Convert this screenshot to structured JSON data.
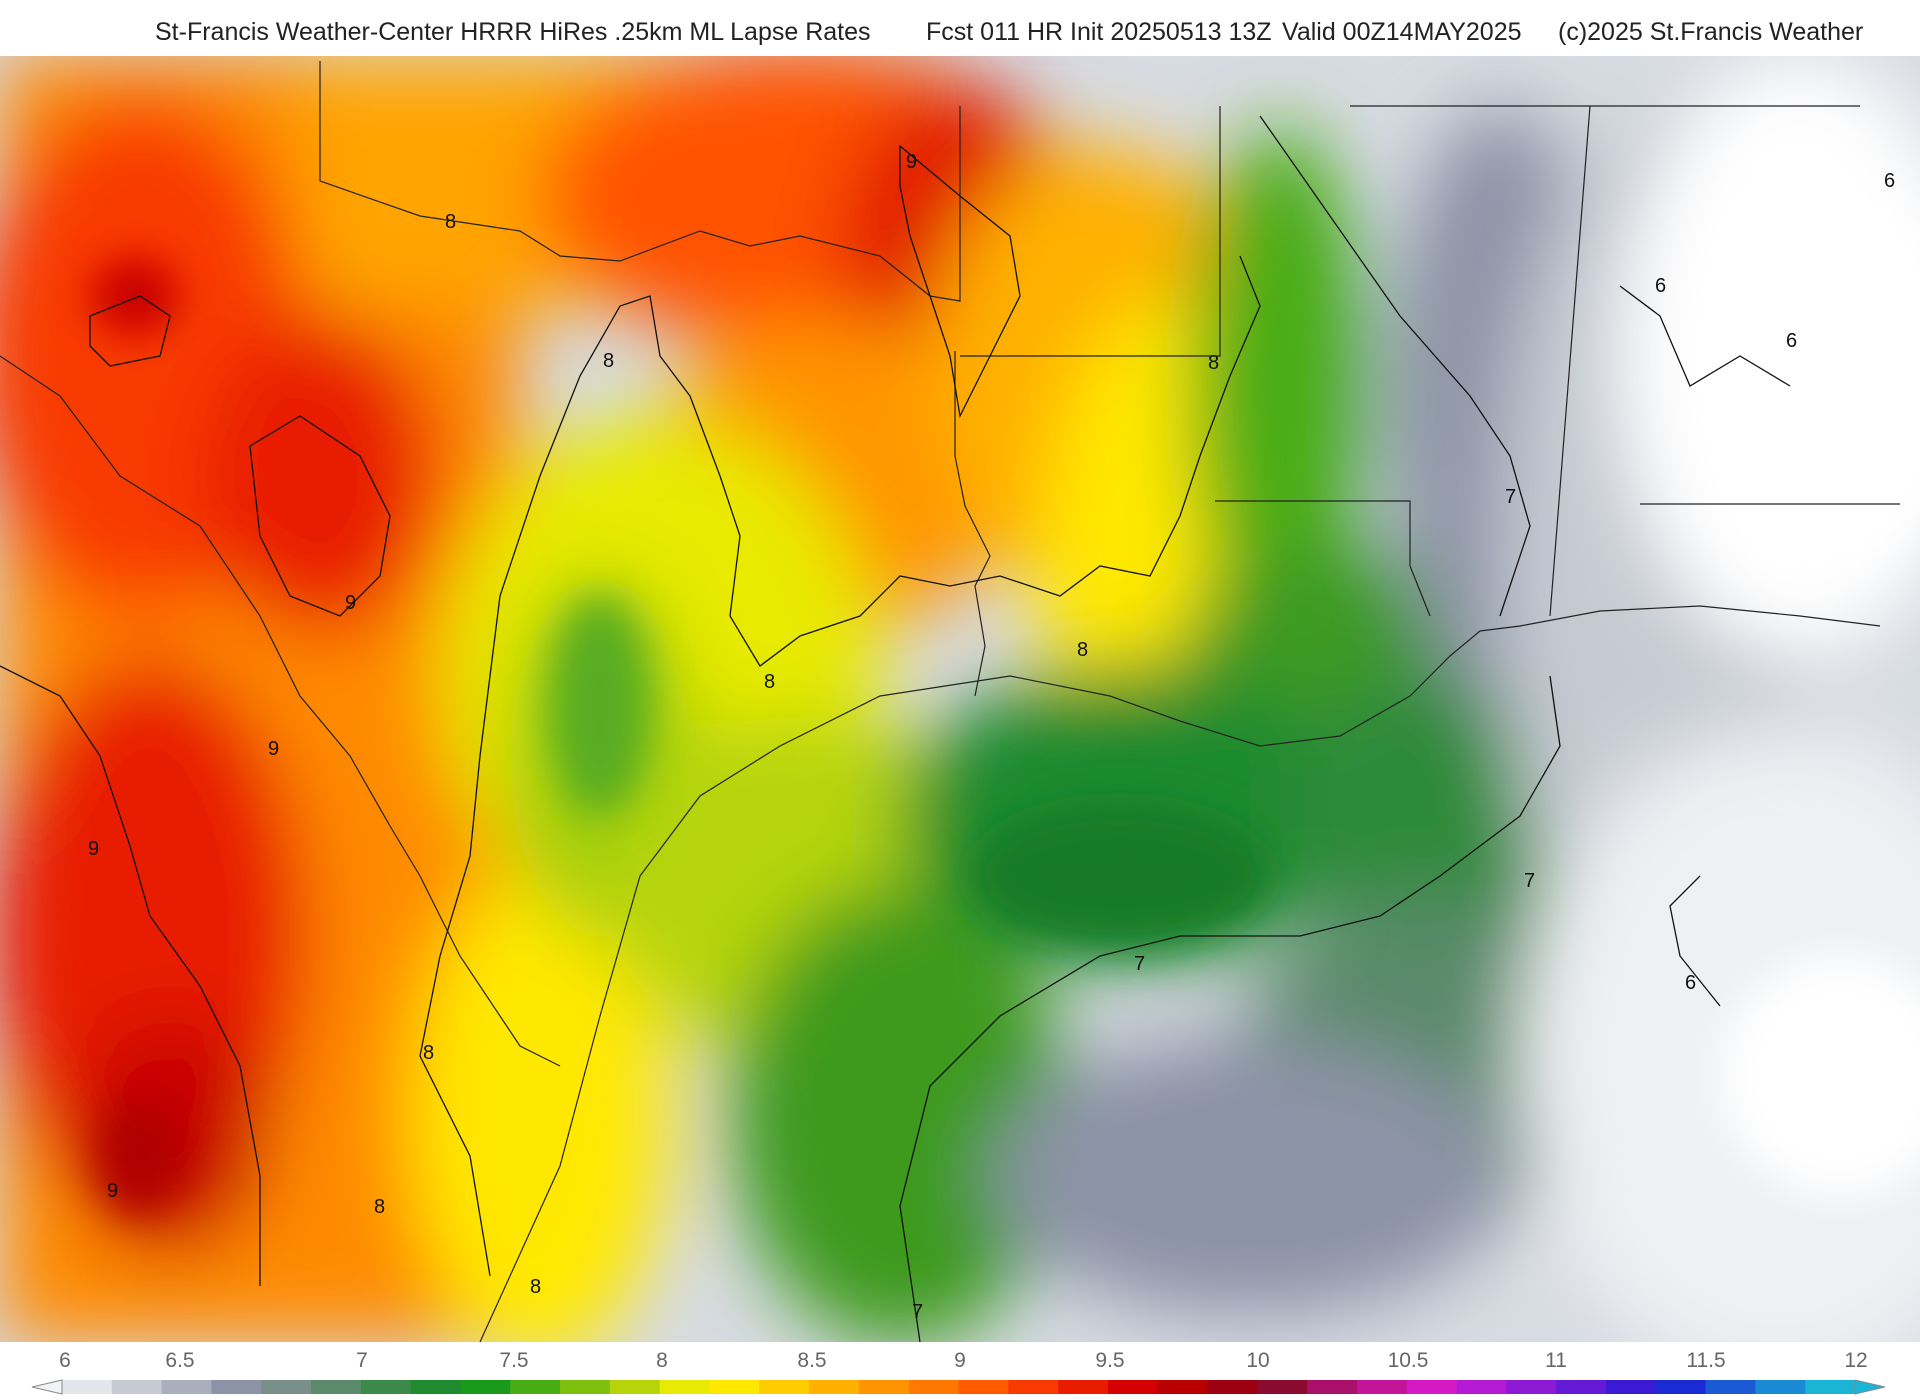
{
  "header": {
    "title": "St-Francis Weather-Center HRRR HiRes .25km ML Lapse Rates",
    "forecast": "Fcst 011 HR Init 20250513 13Z",
    "valid": "Valid 00Z14MAY2025",
    "copyright": "(c)2025 St.Francis Weather"
  },
  "map": {
    "variable": "ML Lapse Rates",
    "contour_labels": [
      "9",
      "8",
      "9",
      "8",
      "8",
      "8",
      "9",
      "9",
      "8",
      "9",
      "8",
      "8",
      "8",
      "7",
      "7",
      "7",
      "7",
      "6",
      "6",
      "6",
      "6"
    ]
  },
  "colorbar": {
    "ticks": [
      "6",
      "6.5",
      "7",
      "7.5",
      "8",
      "8.5",
      "9",
      "9.5",
      "10",
      "10.5",
      "11",
      "11.5",
      "12"
    ],
    "min": 6,
    "max": 12,
    "colors": [
      "#e3e5ea",
      "#c6cad3",
      "#a9afbd",
      "#8c93a6",
      "#7a8f8a",
      "#5a8a6a",
      "#3c8a4a",
      "#1f8a2e",
      "#1a9a1a",
      "#4aac14",
      "#7fc00e",
      "#b5d40a",
      "#e8ea06",
      "#ffe800",
      "#ffcc00",
      "#ffb000",
      "#ff9400",
      "#ff7800",
      "#ff5a00",
      "#f83a00",
      "#ea1c00",
      "#d40000",
      "#b80000",
      "#9c0010",
      "#8a0a30",
      "#a8106a",
      "#c41498",
      "#d41ac4",
      "#b41ad4",
      "#8c1ad4",
      "#641ad4",
      "#3c1ad4",
      "#1a2ad4",
      "#1a5ad4",
      "#1a8ad4",
      "#1ab4d4"
    ]
  }
}
